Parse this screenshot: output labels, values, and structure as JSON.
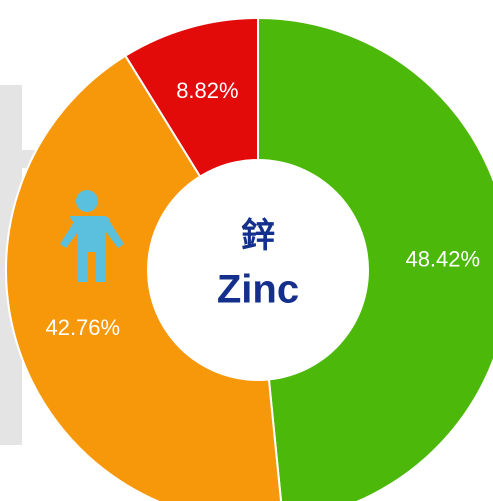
{
  "chart_data": {
    "type": "donut",
    "title": "鋅",
    "subtitle": "Zinc",
    "categories": [
      null,
      null,
      null
    ],
    "values": [
      48.42,
      42.76,
      8.82
    ],
    "value_labels": [
      "48.42%",
      "42.76%",
      "8.82%"
    ],
    "colors": [
      "#4cb809",
      "#f7980a",
      "#e30a0a"
    ]
  }
}
